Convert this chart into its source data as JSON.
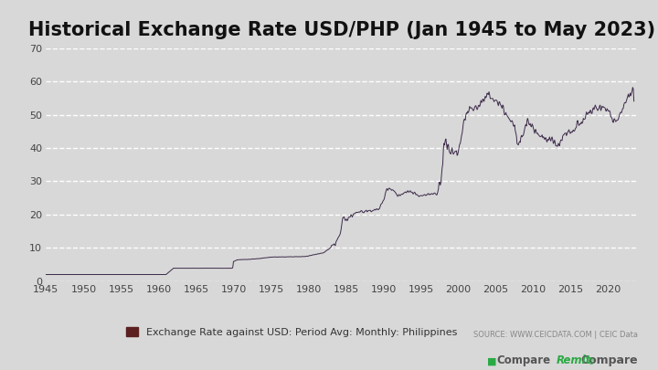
{
  "title": "Historical Exchange Rate USD/PHP (Jan 1945 to May 2023)",
  "title_fontsize": 15,
  "legend_label": "Exchange Rate against USD: Period Avg: Monthly: Philippines",
  "source_text": "SOURCE: WWW.CEICDATA.COM | CEIC Data",
  "line_color": "#3d2b4a",
  "legend_marker_color": "#5c2020",
  "background_color": "#d8d8d8",
  "plot_bg_color": "#d8d8d8",
  "grid_color": "#ffffff",
  "ylim": [
    0,
    70
  ],
  "yticks": [
    0,
    10,
    20,
    30,
    40,
    50,
    60,
    70
  ],
  "xlim_start": 1945,
  "xlim_end": 2024,
  "xticks": [
    1945,
    1950,
    1955,
    1960,
    1965,
    1970,
    1975,
    1980,
    1985,
    1990,
    1995,
    2000,
    2005,
    2010,
    2015,
    2020
  ]
}
